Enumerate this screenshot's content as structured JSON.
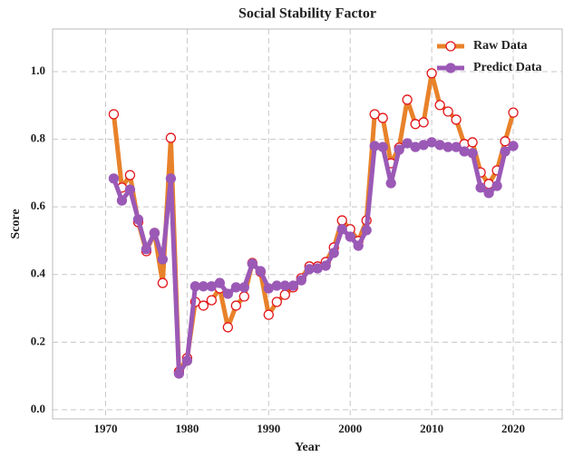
{
  "chart_data": {
    "type": "line",
    "title": "Social Stability Factor",
    "xlabel": "Year",
    "ylabel": "Score",
    "x": [
      1971,
      1972,
      1973,
      1974,
      1975,
      1976,
      1977,
      1978,
      1979,
      1980,
      1981,
      1982,
      1983,
      1984,
      1985,
      1986,
      1987,
      1988,
      1989,
      1990,
      1991,
      1992,
      1993,
      1994,
      1995,
      1996,
      1997,
      1998,
      1999,
      2000,
      2001,
      2002,
      2003,
      2004,
      2005,
      2006,
      2007,
      2008,
      2009,
      2010,
      2011,
      2012,
      2013,
      2014,
      2015,
      2016,
      2017,
      2018,
      2019,
      2020
    ],
    "series": [
      {
        "name": "Raw Data",
        "color": "#e8822a",
        "marker_face": "#ffffff",
        "marker_edge": "#e3161b",
        "values": [
          0.874,
          0.657,
          0.694,
          0.555,
          0.469,
          0.523,
          0.375,
          0.804,
          0.113,
          0.153,
          0.319,
          0.308,
          0.324,
          0.359,
          0.244,
          0.308,
          0.335,
          0.434,
          0.408,
          0.281,
          0.319,
          0.34,
          0.362,
          0.389,
          0.424,
          0.424,
          0.437,
          0.48,
          0.56,
          0.534,
          0.499,
          0.56,
          0.874,
          0.863,
          0.729,
          0.775,
          0.917,
          0.845,
          0.85,
          0.995,
          0.901,
          0.882,
          0.858,
          0.786,
          0.791,
          0.702,
          0.668,
          0.708,
          0.794,
          0.879
        ]
      },
      {
        "name": "Predict Data",
        "color": "#9b59b6",
        "marker_face": "#9b59b6",
        "marker_edge": "#9b59b6",
        "values": [
          0.684,
          0.619,
          0.651,
          0.563,
          0.475,
          0.523,
          0.445,
          0.684,
          0.107,
          0.145,
          0.365,
          0.365,
          0.365,
          0.375,
          0.343,
          0.362,
          0.362,
          0.432,
          0.41,
          0.359,
          0.367,
          0.367,
          0.367,
          0.383,
          0.416,
          0.418,
          0.426,
          0.464,
          0.534,
          0.512,
          0.485,
          0.531,
          0.78,
          0.777,
          0.67,
          0.769,
          0.788,
          0.777,
          0.783,
          0.791,
          0.783,
          0.777,
          0.777,
          0.764,
          0.759,
          0.657,
          0.641,
          0.662,
          0.764,
          0.78
        ]
      }
    ],
    "xlim": [
      1963.5,
      2026
    ],
    "ylim": [
      -0.027,
      1.126
    ],
    "xticks": [
      1970,
      1980,
      1990,
      2000,
      2010,
      2020
    ],
    "yticks": [
      {
        "value": 0,
        "label": "0.0"
      },
      0.2,
      0.4,
      0.6,
      0.8,
      {
        "value": 1,
        "label": "1.0"
      }
    ],
    "grid": true,
    "legend": "upper right"
  }
}
